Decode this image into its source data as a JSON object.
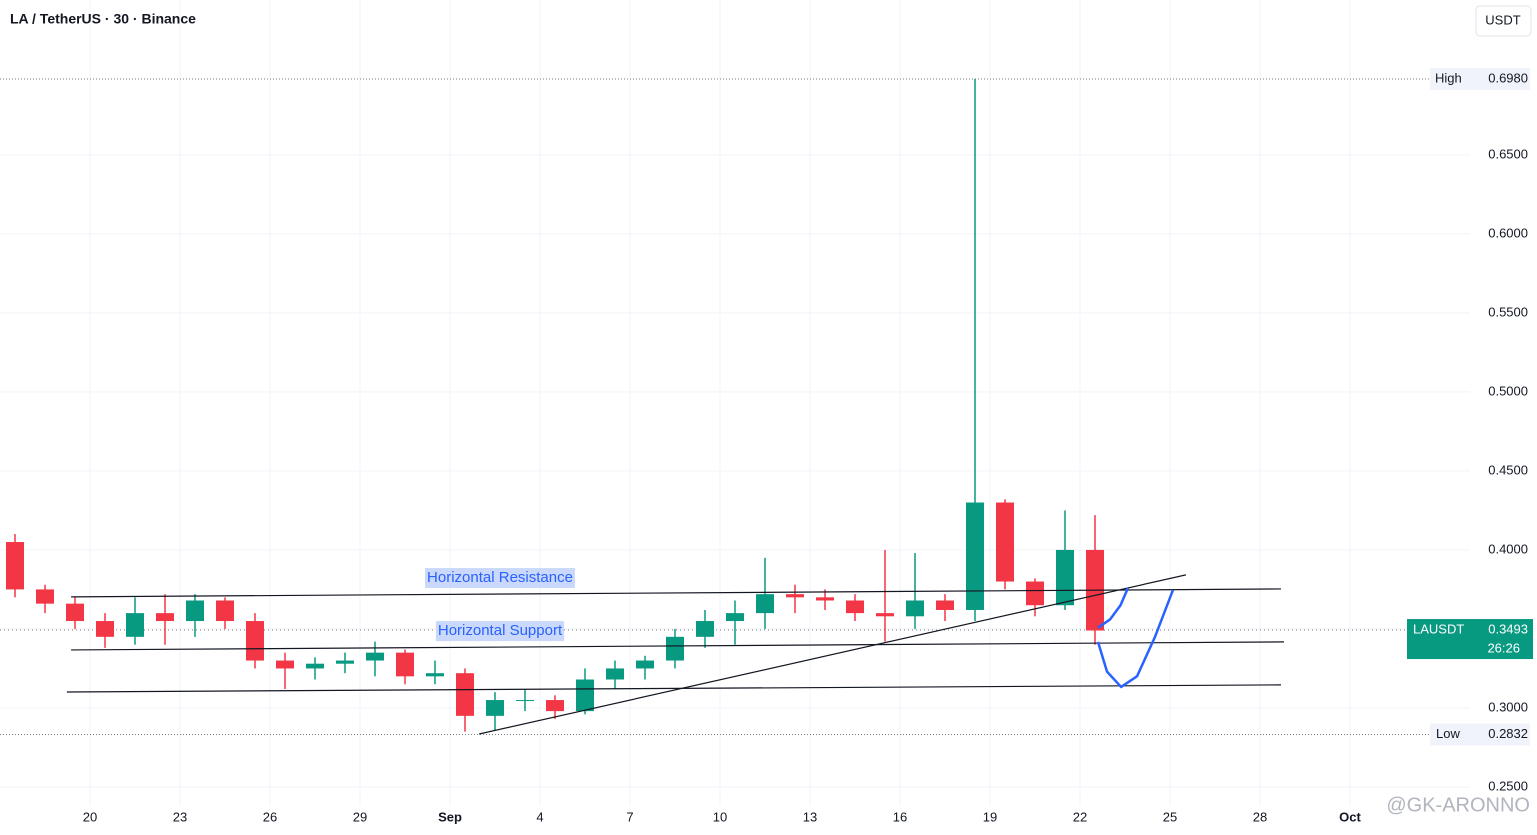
{
  "chart_data": {
    "type": "candlestick",
    "title": "LA / TetherUS · 30 · Binance",
    "currency": "USDT",
    "watermark": "@GK-ARONNO",
    "up_color": "#089981",
    "down_color": "#f23645",
    "xlim": [
      0,
      49
    ],
    "ylim": [
      0.2196,
      0.748
    ],
    "xticks": [
      {
        "value": 3,
        "label": "20"
      },
      {
        "value": 6,
        "label": "23"
      },
      {
        "value": 9,
        "label": "26"
      },
      {
        "value": 12,
        "label": "29"
      },
      {
        "value": 15,
        "label": "Sep"
      },
      {
        "value": 18,
        "label": "4"
      },
      {
        "value": 21,
        "label": "7"
      },
      {
        "value": 24,
        "label": "10"
      },
      {
        "value": 27,
        "label": "13"
      },
      {
        "value": 30,
        "label": "16"
      },
      {
        "value": 33,
        "label": "19"
      },
      {
        "value": 36,
        "label": "22"
      },
      {
        "value": 39,
        "label": "25"
      },
      {
        "value": 42,
        "label": "28"
      },
      {
        "value": 45,
        "label": "Oct"
      }
    ],
    "yticks": [
      {
        "value": 0.25,
        "label": "0.2500"
      },
      {
        "value": 0.3,
        "label": "0.3000"
      },
      {
        "value": 0.35,
        "label": "0.3500"
      },
      {
        "value": 0.4,
        "label": "0.4000"
      },
      {
        "value": 0.45,
        "label": "0.4500"
      },
      {
        "value": 0.5,
        "label": "0.5000"
      },
      {
        "value": 0.55,
        "label": "0.5500"
      },
      {
        "value": 0.6,
        "label": "0.6000"
      },
      {
        "value": 0.65,
        "label": "0.6500"
      }
    ],
    "grid": true,
    "x": [
      0,
      1,
      2,
      3,
      4,
      5,
      6,
      7,
      8,
      9,
      10,
      11,
      12,
      13,
      14,
      15,
      16,
      17,
      18,
      19,
      20,
      21,
      22,
      23,
      24,
      25,
      26,
      27,
      28,
      29,
      30,
      31,
      32,
      33,
      34,
      35,
      36
    ],
    "open": [
      0.405,
      0.375,
      0.366,
      0.355,
      0.345,
      0.36,
      0.355,
      0.368,
      0.355,
      0.33,
      0.325,
      0.328,
      0.33,
      0.335,
      0.32,
      0.322,
      0.295,
      0.305,
      0.305,
      0.298,
      0.318,
      0.325,
      0.33,
      0.345,
      0.355,
      0.36,
      0.372,
      0.37,
      0.368,
      0.36,
      0.358,
      0.368,
      0.362,
      0.43,
      0.38,
      0.365,
      0.4
    ],
    "high": [
      0.41,
      0.378,
      0.37,
      0.36,
      0.37,
      0.372,
      0.372,
      0.37,
      0.36,
      0.335,
      0.332,
      0.335,
      0.342,
      0.337,
      0.33,
      0.325,
      0.31,
      0.312,
      0.308,
      0.325,
      0.33,
      0.333,
      0.35,
      0.362,
      0.368,
      0.395,
      0.378,
      0.375,
      0.372,
      0.4,
      0.398,
      0.372,
      0.698,
      0.432,
      0.382,
      0.425,
      0.422
    ],
    "low": [
      0.37,
      0.36,
      0.35,
      0.338,
      0.34,
      0.34,
      0.345,
      0.35,
      0.325,
      0.312,
      0.318,
      0.322,
      0.32,
      0.315,
      0.315,
      0.285,
      0.286,
      0.298,
      0.293,
      0.296,
      0.312,
      0.318,
      0.325,
      0.338,
      0.34,
      0.35,
      0.36,
      0.362,
      0.355,
      0.342,
      0.35,
      0.355,
      0.355,
      0.375,
      0.358,
      0.362,
      0.34
    ],
    "close": [
      0.375,
      0.366,
      0.355,
      0.345,
      0.36,
      0.355,
      0.368,
      0.355,
      0.33,
      0.325,
      0.328,
      0.33,
      0.335,
      0.32,
      0.322,
      0.295,
      0.305,
      0.305,
      0.298,
      0.318,
      0.325,
      0.33,
      0.345,
      0.355,
      0.36,
      0.372,
      0.37,
      0.368,
      0.36,
      0.358,
      0.368,
      0.362,
      0.43,
      0.38,
      0.365,
      0.4,
      0.349
    ],
    "high_marker": {
      "label": "High",
      "value": {
        "value": 0.698,
        "label": "0.6980"
      }
    },
    "low_marker": {
      "label": "Low",
      "value": 0.2832
    },
    "last": {
      "label": "LAUSDT",
      "value": 0.3493,
      "countdown": "26:26"
    },
    "drawings": [
      {
        "color": "#131722",
        "label": "Horizontal Resistance",
        "x": [
          2.37,
          42.7
        ],
        "y": [
          0.3703,
          0.3753
        ]
      },
      {
        "color": "#131722",
        "label": "Horizontal Support",
        "x": [
          2.37,
          42.8
        ],
        "y": [
          0.3367,
          0.3418
        ]
      },
      {
        "color": "#131722",
        "x": [
          2.23,
          42.7
        ],
        "y": [
          0.3101,
          0.3146
        ]
      },
      {
        "color": "#131722",
        "x": [
          15.97,
          39.53
        ],
        "y": [
          0.2835,
          0.3842
        ]
      },
      {
        "color": "#2962ff",
        "x": [
          36.6,
          36.9,
          37.37,
          37.9,
          38.5,
          39.1
        ],
        "y": [
          0.3418,
          0.323,
          0.3133,
          0.32,
          0.345,
          0.3747
        ]
      },
      {
        "color": "#2962ff",
        "x": [
          36.6,
          37.0,
          37.35,
          37.6
        ],
        "y": [
          0.3508,
          0.356,
          0.365,
          0.376
        ]
      }
    ]
  }
}
